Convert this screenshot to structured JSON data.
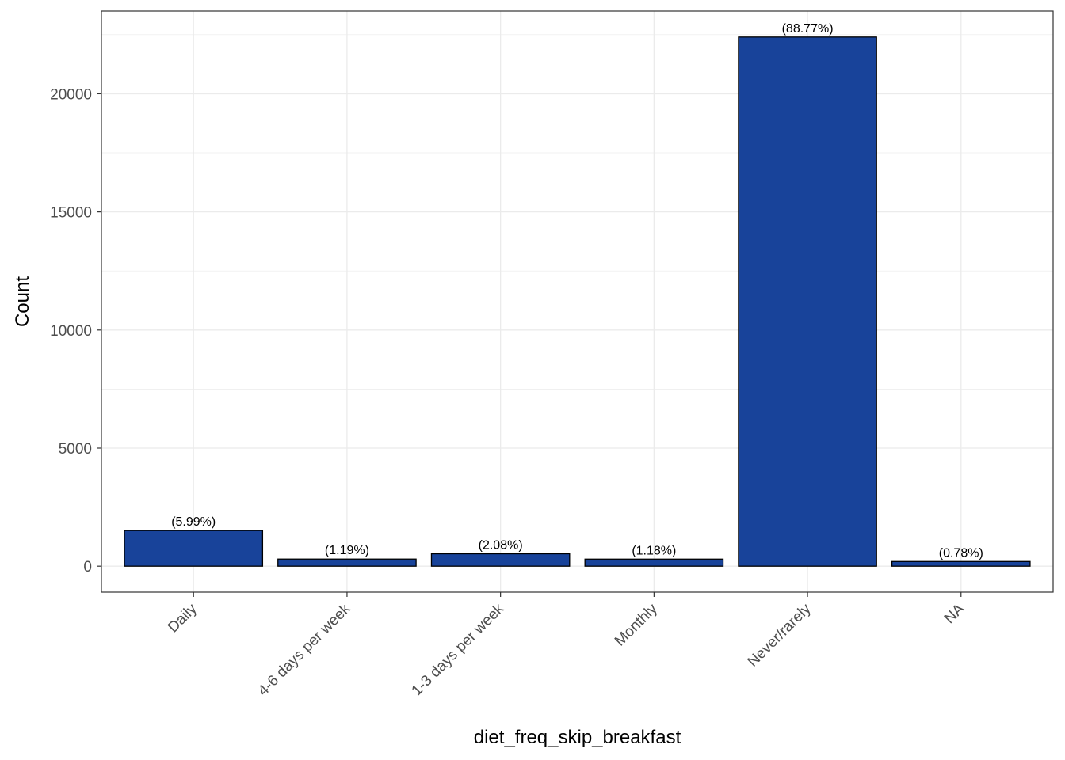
{
  "chart_data": {
    "type": "bar",
    "xlabel": "diet_freq_skip_breakfast",
    "ylabel": "Count",
    "categories": [
      "Daily",
      "4-6 days per week",
      "1-3 days per week",
      "Monthly",
      "Never/rarely",
      "NA"
    ],
    "values": [
      1510,
      300,
      525,
      298,
      22400,
      197
    ],
    "labels": [
      "(5.99%)",
      "(1.19%)",
      "(2.08%)",
      "(1.18%)",
      "(88.77%)",
      "(0.78%)"
    ],
    "ylim": [
      -1100,
      23500
    ],
    "yticks": [
      0,
      5000,
      10000,
      15000,
      20000
    ],
    "ytick_labels": [
      "0",
      "5000",
      "10000",
      "15000",
      "20000"
    ],
    "grid": true,
    "legend": "none",
    "colors": {
      "bar_fill": "#18439a",
      "bar_stroke": "#000000",
      "grid": "#ebebeb",
      "panel_border": "#333333"
    }
  }
}
